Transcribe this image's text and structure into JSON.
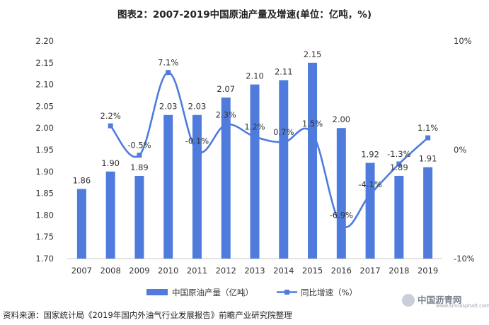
{
  "chart_data": {
    "type": "bar",
    "title": "图表2：2007-2019中国原油产量及增速(单位：亿吨，%)",
    "categories": [
      "2007",
      "2008",
      "2009",
      "2010",
      "2011",
      "2012",
      "2013",
      "2014",
      "2015",
      "2016",
      "2017",
      "2018",
      "2019"
    ],
    "series": [
      {
        "name": "中国原油产量（亿吨）",
        "type": "bar",
        "axis": "left",
        "color": "#4f7cdc",
        "values": [
          1.86,
          1.9,
          1.89,
          2.03,
          2.03,
          2.07,
          2.1,
          2.11,
          2.15,
          2.0,
          1.92,
          1.89,
          1.91
        ],
        "labels": [
          "1.86",
          "1.90",
          "1.89",
          "2.03",
          "2.03",
          "2.07",
          "2.10",
          "2.11",
          "2.15",
          "2.00",
          "1.92",
          "1.89",
          "1.91"
        ]
      },
      {
        "name": "同比增速（%）",
        "type": "line",
        "axis": "right",
        "color": "#4f7cdc",
        "smooth": true,
        "marker": "square",
        "values": [
          null,
          2.2,
          -0.5,
          7.1,
          -0.1,
          2.3,
          1.2,
          0.7,
          1.5,
          -6.9,
          -4.1,
          -1.3,
          1.1
        ],
        "labels": [
          "",
          "2.2%",
          "-0.5%",
          "7.1%",
          "-0.1%",
          "2.3%",
          "1.2%",
          "0.7%",
          "1.5%",
          "-6.9%",
          "-4.1%",
          "-1.3%",
          "1.1%"
        ]
      }
    ],
    "y_left": {
      "ylim": [
        1.7,
        2.2
      ],
      "ticks": [
        "1.70",
        "1.75",
        "1.80",
        "1.85",
        "1.90",
        "1.95",
        "2.00",
        "2.05",
        "2.10",
        "2.15",
        "2.20"
      ]
    },
    "y_right": {
      "ylim": [
        -10,
        10
      ],
      "ticks": [
        {
          "value": 10,
          "label": "10%"
        },
        {
          "value": 0,
          "label": "0%"
        },
        {
          "value": -10,
          "label": "-10%"
        }
      ]
    },
    "grid": false,
    "legend": "bottom"
  },
  "source": "资料来源：国家统计局《2019年国内外油气行业发展报告》前瞻产业研究院整理",
  "logo": {
    "name": "中国沥青网",
    "url": "www.sinoasphalt.com"
  }
}
